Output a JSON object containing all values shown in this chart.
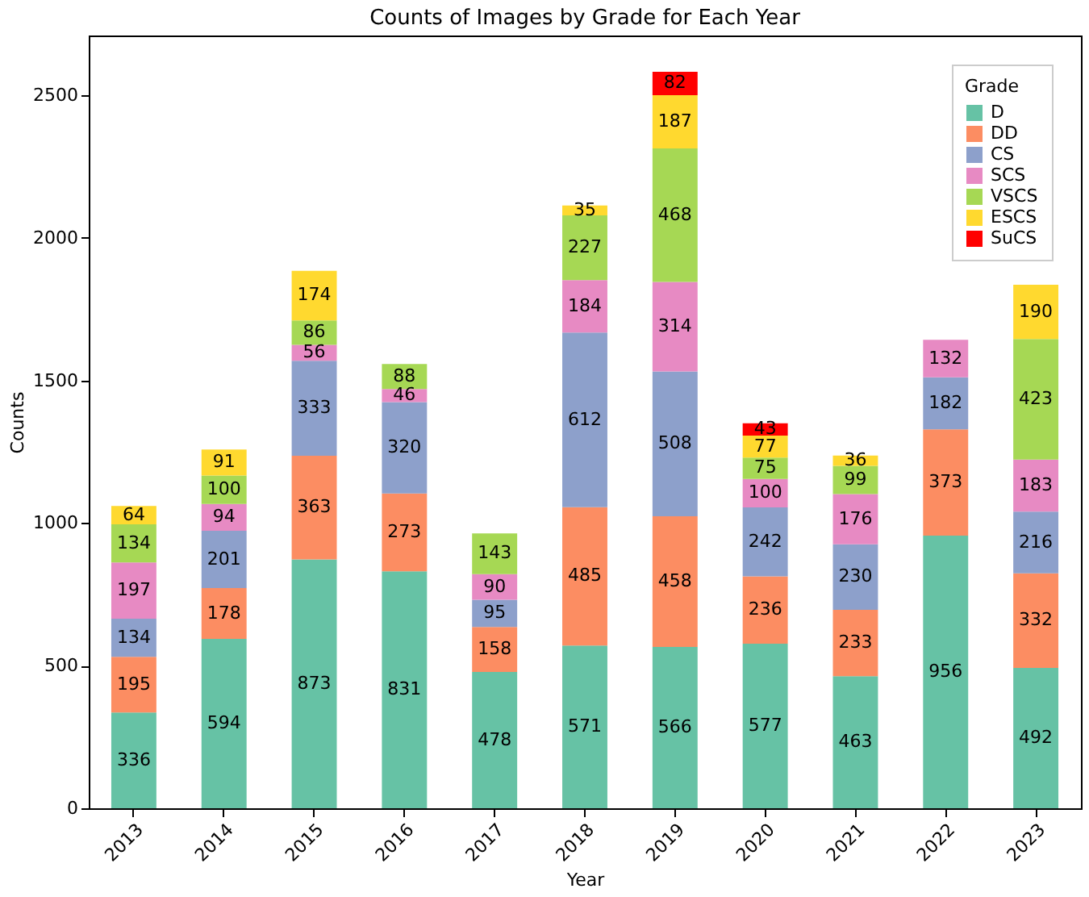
{
  "chart_data": {
    "type": "bar",
    "title": "Counts of Images by Grade for Each Year",
    "xlabel": "Year",
    "ylabel": "Counts",
    "legend_title": "Grade",
    "categories": [
      "2013",
      "2014",
      "2015",
      "2016",
      "2017",
      "2018",
      "2019",
      "2020",
      "2021",
      "2022",
      "2023"
    ],
    "stacked": true,
    "data_labels": true,
    "legend": "top right",
    "grid": false,
    "ylim": [
      0,
      2710
    ],
    "yticks": [
      0,
      500,
      1000,
      1500,
      2000,
      2500
    ],
    "series": [
      {
        "name": "D",
        "color": "#66c2a5",
        "values": [
          336,
          594,
          873,
          831,
          478,
          571,
          566,
          577,
          463,
          956,
          492
        ]
      },
      {
        "name": "DD",
        "color": "#fc8d62",
        "values": [
          195,
          178,
          363,
          273,
          158,
          485,
          458,
          236,
          233,
          373,
          332
        ]
      },
      {
        "name": "CS",
        "color": "#8da0cb",
        "values": [
          134,
          201,
          333,
          320,
          95,
          612,
          508,
          242,
          230,
          182,
          216
        ]
      },
      {
        "name": "SCS",
        "color": "#e78ac3",
        "values": [
          197,
          94,
          56,
          46,
          90,
          184,
          314,
          100,
          176,
          132,
          183
        ]
      },
      {
        "name": "VSCS",
        "color": "#a6d854",
        "values": [
          134,
          100,
          86,
          88,
          143,
          227,
          468,
          75,
          99,
          null,
          423
        ]
      },
      {
        "name": "ESCS",
        "color": "#ffd92f",
        "values": [
          64,
          91,
          174,
          null,
          null,
          35,
          187,
          77,
          36,
          null,
          190
        ]
      },
      {
        "name": "SuCS",
        "color": "#ff0000",
        "values": [
          null,
          null,
          null,
          null,
          null,
          null,
          82,
          43,
          null,
          null,
          null
        ]
      }
    ]
  }
}
